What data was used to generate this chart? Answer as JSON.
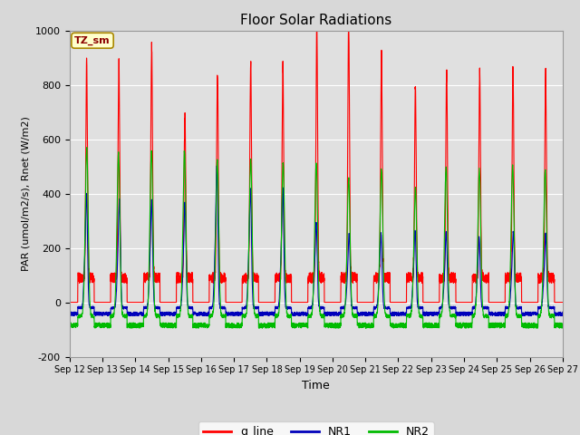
{
  "title": "Floor Solar Radiations",
  "xlabel": "Time",
  "ylabel": "PAR (umol/m2/s), Rnet (W/m2)",
  "ylim": [
    -200,
    1000
  ],
  "xlim_days": [
    12,
    27
  ],
  "xtick_labels": [
    "Sep 12",
    "Sep 13",
    "Sep 14",
    "Sep 15",
    "Sep 16",
    "Sep 17",
    "Sep 18",
    "Sep 19",
    "Sep 20",
    "Sep 21",
    "Sep 22",
    "Sep 23",
    "Sep 24",
    "Sep 25",
    "Sep 26",
    "Sep 27"
  ],
  "ytick_values": [
    -200,
    0,
    200,
    400,
    600,
    800,
    1000
  ],
  "legend_labels": [
    "q_line",
    "NR1",
    "NR2"
  ],
  "legend_colors": [
    "#ff0000",
    "#0000bb",
    "#00bb00"
  ],
  "annotation_text": "TZ_sm",
  "annotation_bg": "#ffffcc",
  "annotation_border": "#aa8800",
  "bg_color": "#e0e0e0",
  "grid_color": "#ffffff",
  "fig_bg": "#d8d8d8",
  "line_width": 0.8,
  "hours_per_day": 240,
  "num_days": 15,
  "seed": 99,
  "q_peaks": [
    800,
    800,
    850,
    600,
    750,
    800,
    780,
    930,
    940,
    820,
    710,
    760,
    760,
    770,
    760
  ],
  "nr1_peaks": [
    400,
    380,
    380,
    370,
    500,
    420,
    420,
    300,
    260,
    260,
    270,
    270,
    250,
    270,
    260
  ],
  "nr2_peaks": [
    550,
    530,
    540,
    540,
    510,
    510,
    500,
    500,
    450,
    480,
    420,
    490,
    480,
    490,
    480
  ],
  "q_day_base": 80,
  "nr1_night": -40,
  "nr2_night": -80
}
